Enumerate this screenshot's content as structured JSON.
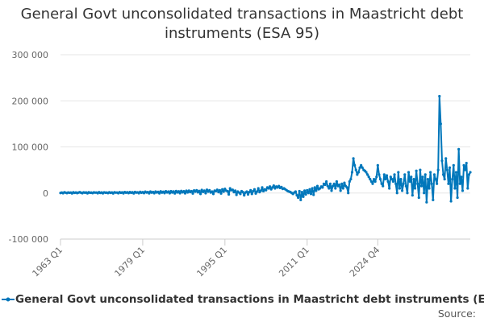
{
  "chart_data": {
    "type": "line",
    "title": "General Govt unconsolidated transactions in Maastricht debt instruments (ESA 95)",
    "ylim": [
      -100000,
      300000
    ],
    "y_ticks": [
      {
        "value": 300000,
        "label": "300 000"
      },
      {
        "value": 200000,
        "label": "200 000"
      },
      {
        "value": 100000,
        "label": "100 000"
      },
      {
        "value": 0,
        "label": "0"
      },
      {
        "value": -100000,
        "label": "-100 000"
      }
    ],
    "x_ticks": [
      "1963 Q1",
      "1979 Q1",
      "1995 Q1",
      "2011 Q1",
      "2024 Q4"
    ],
    "grid": "horizontal",
    "legend_position": "bottom",
    "series": [
      {
        "name": "General Govt unconsolidated transactions in Maastricht debt instruments (ESA 95)",
        "color": "#0077bb",
        "start": "1963 Q1",
        "frequency": "quarterly",
        "values": [
          0,
          1000,
          -500,
          1500,
          800,
          -300,
          1200,
          500,
          1000,
          -800,
          1500,
          300,
          1200,
          -200,
          900,
          1800,
          600,
          -400,
          1400,
          700,
          1100,
          -600,
          1600,
          400,
          900,
          -300,
          1300,
          800,
          1000,
          -500,
          1700,
          200,
          1100,
          -700,
          1400,
          600,
          900,
          -200,
          1500,
          300,
          1200,
          -900,
          1600,
          800,
          1000,
          -400,
          1800,
          500,
          1300,
          -600,
          1900,
          700,
          1500,
          -300,
          2000,
          400,
          1600,
          -800,
          2200,
          900,
          1400,
          -500,
          2500,
          600,
          1800,
          -200,
          2800,
          1000,
          2000,
          -700,
          3000,
          800,
          2200,
          -400,
          3200,
          1100,
          2500,
          -600,
          3500,
          900,
          2700,
          -300,
          3800,
          1200,
          3000,
          -500,
          4000,
          1000,
          3300,
          -800,
          4200,
          1300,
          3500,
          -400,
          4500,
          1500,
          3800,
          -600,
          4800,
          1200,
          5000,
          2000,
          4000,
          -1000,
          5500,
          3000,
          6000,
          1500,
          4500,
          -2000,
          6500,
          2500,
          5000,
          -500,
          7000,
          3000,
          6000,
          1000,
          3000,
          -2000,
          5000,
          4000,
          7000,
          2000,
          6000,
          -1000,
          8000,
          3000,
          9000,
          5000,
          4000,
          -3000,
          10000,
          6000,
          7000,
          2000,
          5000,
          -4000,
          3000,
          1000,
          -2000,
          4000,
          2000,
          -5000,
          1000,
          3000,
          -3000,
          2000,
          6000,
          -2000,
          4000,
          8000,
          -1000,
          3000,
          10000,
          2000,
          5000,
          12000,
          4000,
          8000,
          6000,
          12000,
          10000,
          14000,
          8000,
          12000,
          16000,
          10000,
          14000,
          12000,
          15000,
          11000,
          13000,
          9000,
          10000,
          8000,
          6000,
          4000,
          3000,
          2000,
          0,
          -2000,
          1000,
          3000,
          -5000,
          -10000,
          4000,
          -15000,
          2000,
          -8000,
          5000,
          -3000,
          6000,
          0,
          8000,
          -2000,
          10000,
          -4000,
          12000,
          5000,
          15000,
          8000,
          10000,
          14000,
          12000,
          20000,
          18000,
          25000,
          15000,
          10000,
          20000,
          5000,
          15000,
          20000,
          10000,
          25000,
          15000,
          18000,
          5000,
          20000,
          10000,
          22000,
          15000,
          12000,
          0,
          25000,
          30000,
          45000,
          75000,
          60000,
          50000,
          40000,
          45000,
          55000,
          60000,
          55000,
          50000,
          48000,
          45000,
          40000,
          35000,
          30000,
          25000,
          20000,
          30000,
          25000,
          35000,
          60000,
          40000,
          30000,
          20000,
          15000,
          40000,
          30000,
          38000,
          25000,
          10000,
          35000,
          30000,
          25000,
          40000,
          20000,
          0,
          45000,
          10000,
          30000,
          5000,
          20000,
          40000,
          15000,
          0,
          45000,
          25000,
          35000,
          -5000,
          30000,
          10000,
          48000,
          20000,
          -10000,
          50000,
          15000,
          35000,
          0,
          40000,
          -20000,
          30000,
          10000,
          45000,
          20000,
          -15000,
          40000,
          30000,
          20000,
          50000,
          210000,
          150000,
          70000,
          40000,
          30000,
          75000,
          50000,
          20000,
          55000,
          -18000,
          30000,
          60000,
          10000,
          45000,
          -10000,
          95000,
          20000,
          35000,
          5000,
          60000,
          50000,
          65000,
          10000,
          40000,
          45000
        ]
      }
    ]
  },
  "credit": "Source:"
}
